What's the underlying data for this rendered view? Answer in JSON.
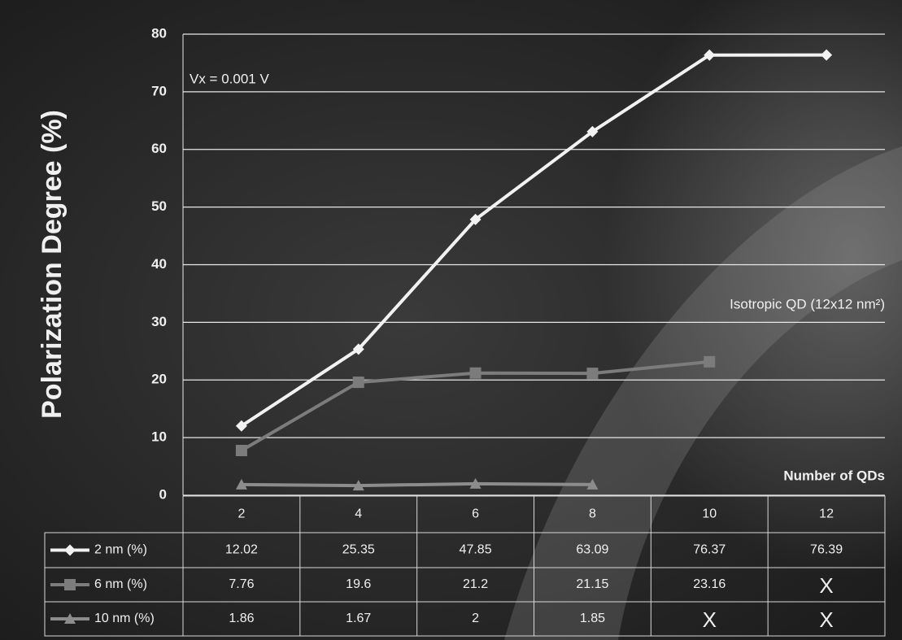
{
  "chart_data": {
    "type": "line",
    "y_label": "Polarization Degree (%)",
    "annotations": [
      "Vx = 0.001 V",
      "Isotropic QD (12x12 nm²)"
    ],
    "x_label": "Number of QDs",
    "categories": [
      "2",
      "4",
      "6",
      "8",
      "10",
      "12"
    ],
    "series": [
      {
        "name": "2 nm (%)",
        "color": "#f2f2f2",
        "marker": "diamond",
        "values": [
          12.02,
          25.35,
          47.85,
          63.09,
          76.37,
          76.39
        ]
      },
      {
        "name": "6 nm (%)",
        "color": "#7c7c7c",
        "marker": "square",
        "values": [
          7.76,
          19.6,
          21.2,
          21.15,
          23.16,
          null
        ],
        "value_labels": [
          "7.76",
          "19.6",
          "21.2",
          "21.15",
          "23.16",
          "X"
        ]
      },
      {
        "name": "10 nm (%)",
        "color": "#8c8c8c",
        "marker": "triangle",
        "values": [
          1.86,
          1.67,
          2,
          1.85,
          null,
          null
        ],
        "value_labels": [
          "1.86",
          "1.67",
          "2",
          "1.85",
          "X",
          "X"
        ]
      }
    ],
    "ylim": [
      0,
      80
    ],
    "yticks": [
      0,
      10,
      20,
      30,
      40,
      50,
      60,
      70,
      80
    ],
    "grid": true
  }
}
